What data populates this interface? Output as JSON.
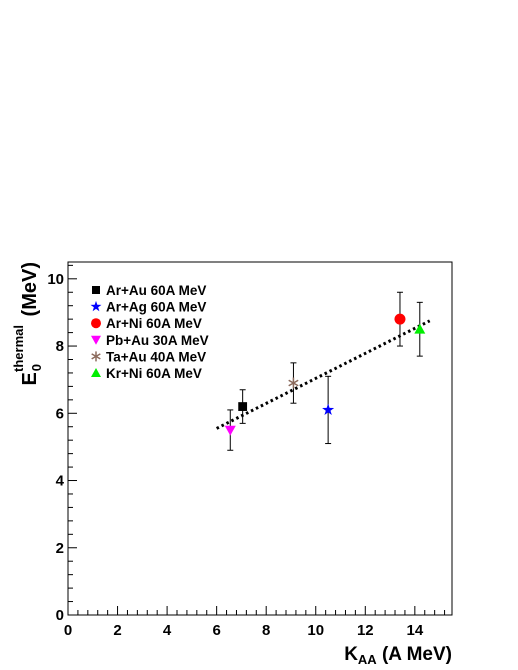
{
  "chart_data": {
    "type": "scatter",
    "x_axis": {
      "title_main": "K",
      "title_sub": "AA",
      "title_rest": " (A MeV)",
      "range": [
        0,
        15.5
      ],
      "ticks": [
        0,
        2,
        4,
        6,
        8,
        10,
        12,
        14
      ]
    },
    "y_axis": {
      "title_main": "E",
      "title_sub": "0",
      "title_sup": "thermal",
      "title_rest": " (MeV)",
      "range": [
        0,
        10.5
      ],
      "ticks": [
        0,
        2,
        4,
        6,
        8,
        10
      ]
    },
    "legend_placement": "top-left",
    "series": [
      {
        "name": "Ar+Au 60A MeV",
        "marker": "square",
        "color": "#000000",
        "points": [
          {
            "x": 7.05,
            "y": 6.2,
            "err": 0.5
          }
        ]
      },
      {
        "name": "Ar+Ag 60A MeV",
        "marker": "star",
        "color": "#0000ff",
        "points": [
          {
            "x": 10.5,
            "y": 6.1,
            "err": 1.0
          }
        ]
      },
      {
        "name": "Ar+Ni  60A MeV",
        "marker": "circle",
        "color": "#ff0000",
        "points": [
          {
            "x": 13.4,
            "y": 8.8,
            "err": 0.8
          }
        ]
      },
      {
        "name": "Pb+Au 30A MeV",
        "marker": "triangle-down",
        "color": "#ff00ff",
        "points": [
          {
            "x": 6.55,
            "y": 5.5,
            "err": 0.6
          }
        ]
      },
      {
        "name": "Ta+Au 40A MeV",
        "marker": "asterisk",
        "color": "#8b6a5c",
        "points": [
          {
            "x": 9.1,
            "y": 6.9,
            "err": 0.6
          }
        ]
      },
      {
        "name": "Kr+Ni  60A MeV",
        "marker": "triangle-up",
        "color": "#00ee00",
        "points": [
          {
            "x": 14.2,
            "y": 8.5,
            "err": 0.8
          }
        ]
      }
    ],
    "fit_line": {
      "style": "dotted",
      "color": "#000000",
      "x": [
        6.0,
        14.6
      ],
      "y": [
        5.55,
        8.75
      ]
    }
  }
}
